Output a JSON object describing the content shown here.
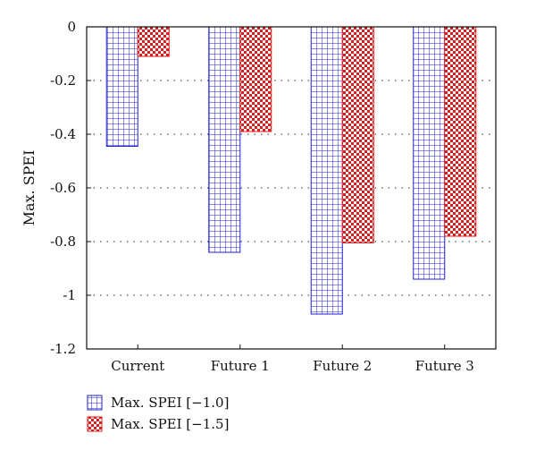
{
  "chart_data": {
    "type": "bar",
    "categories": [
      "Current",
      "Future 1",
      "Future 2",
      "Future 3"
    ],
    "series": [
      {
        "name": "Max. SPEI [−1.0]",
        "color": "#1f1fd6",
        "pattern": "grid",
        "values": [
          -0.445,
          -0.84,
          -1.07,
          -0.94
        ]
      },
      {
        "name": "Max. SPEI [−1.5]",
        "color": "#e01b1b",
        "pattern": "checker",
        "values": [
          -0.11,
          -0.39,
          -0.805,
          -0.78
        ]
      }
    ],
    "ylabel": "Max. SPEI",
    "ylim": [
      -1.2,
      0
    ],
    "yticks": [
      0,
      -0.2,
      -0.4,
      -0.6,
      -0.8,
      -1,
      -1.2
    ],
    "ytick_labels": [
      "0",
      "-0.2",
      "-0.4",
      "-0.6",
      "-0.8",
      "-1",
      "-1.2"
    ],
    "grid": "horizontal-dotted",
    "legend_position": "bottom-left"
  }
}
